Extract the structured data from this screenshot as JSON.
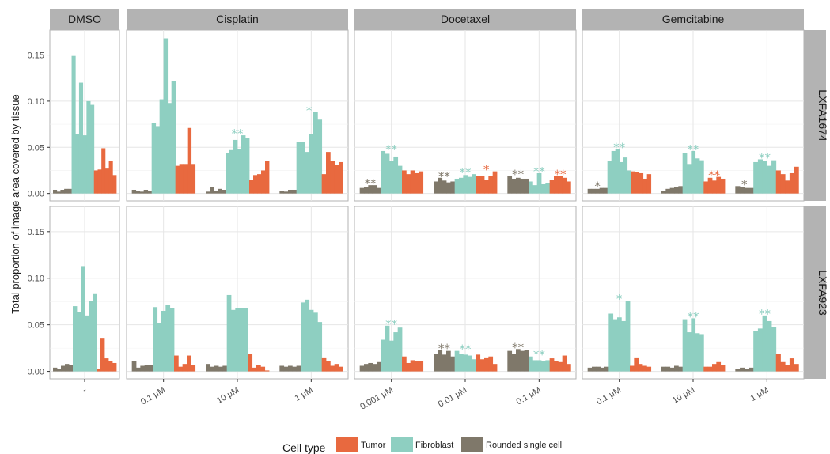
{
  "chart_data": {
    "type": "bar",
    "ylabel": "Total proportion of image area covered by tissue",
    "ylim": [
      -0.008,
      0.177
    ],
    "y_ticks": [
      "0.00",
      "0.05",
      "0.10",
      "0.15"
    ],
    "y_tick_values": [
      0,
      0.05,
      0.1,
      0.15
    ],
    "legend": {
      "title": "Cell type",
      "items": [
        {
          "label": "Tumor",
          "color": "#E8693F"
        },
        {
          "label": "Fibroblast",
          "color": "#8ECFC1"
        },
        {
          "label": "Rounded single cell",
          "color": "#7F786A"
        }
      ]
    },
    "colors": {
      "Tumor": "#E8693F",
      "Fibroblast": "#8ECFC1",
      "Rounded single cell": "#7F786A"
    },
    "columns": [
      {
        "label": "DMSO",
        "concentrations": [
          "-"
        ]
      },
      {
        "label": "Cisplatin",
        "concentrations": [
          "0.1 µM",
          "10 µM",
          "1 µM"
        ]
      },
      {
        "label": "Docetaxel",
        "concentrations": [
          "0.001 µM",
          "0.01 µM",
          "0.1 µM"
        ]
      },
      {
        "label": "Gemcitabine",
        "concentrations": [
          "0.1 µM",
          "10 µM",
          "1 µM"
        ]
      }
    ],
    "rows": [
      {
        "label": "LXFA1674",
        "panels": [
          {
            "groups": [
              {
                "rounded": [
                  0.004,
                  0.002,
                  0.004,
                  0.005,
                  0.005
                ],
                "fibroblast": [
                  0.149,
                  0.064,
                  0.12,
                  0.063,
                  0.1,
                  0.096
                ],
                "tumor": [
                  0.025,
                  0.026,
                  0.049,
                  0.027,
                  0.035,
                  0.02
                ],
                "stars": []
              }
            ]
          },
          {
            "groups": [
              {
                "rounded": [
                  0.004,
                  0.003,
                  0.002,
                  0.004,
                  0.003
                ],
                "fibroblast": [
                  0.076,
                  0.073,
                  0.102,
                  0.168,
                  0.098,
                  0.122
                ],
                "tumor": [
                  0.03,
                  0.032,
                  0.032,
                  0.071,
                  0.032
                ],
                "stars": []
              },
              {
                "rounded": [
                  0.002,
                  0.007,
                  0.003,
                  0.005,
                  0.004
                ],
                "fibroblast": [
                  0.044,
                  0.047,
                  0.058,
                  0.048,
                  0.063,
                  0.06
                ],
                "tumor": [
                  0.015,
                  0.02,
                  0.021,
                  0.025,
                  0.035
                ],
                "stars": [
                  {
                    "text": "**",
                    "cell": "Fibroblast"
                  }
                ]
              },
              {
                "rounded": [
                  0.003,
                  0.002,
                  0.004,
                  0.004
                ],
                "fibroblast": [
                  0.056,
                  0.056,
                  0.045,
                  0.064,
                  0.088,
                  0.08
                ],
                "tumor": [
                  0.021,
                  0.045,
                  0.035,
                  0.031,
                  0.034
                ],
                "stars": [
                  {
                    "text": "*",
                    "cell": "Fibroblast"
                  }
                ]
              }
            ]
          },
          {
            "groups": [
              {
                "rounded": [
                  0.006,
                  0.007,
                  0.009,
                  0.009,
                  0.006
                ],
                "fibroblast": [
                  0.046,
                  0.043,
                  0.035,
                  0.04,
                  0.03
                ],
                "tumor": [
                  0.025,
                  0.021,
                  0.025,
                  0.022,
                  0.024
                ],
                "stars": [
                  {
                    "text": "**",
                    "cell": "Rounded single cell"
                  },
                  {
                    "text": "**",
                    "cell": "Fibroblast"
                  }
                ]
              },
              {
                "rounded": [
                  0.013,
                  0.017,
                  0.014,
                  0.012,
                  0.013
                ],
                "fibroblast": [
                  0.016,
                  0.017,
                  0.02,
                  0.018,
                  0.021
                ],
                "tumor": [
                  0.019,
                  0.019,
                  0.015,
                  0.019,
                  0.024
                ],
                "stars": [
                  {
                    "text": "**",
                    "cell": "Rounded single cell"
                  },
                  {
                    "text": "**",
                    "cell": "Fibroblast"
                  },
                  {
                    "text": "*",
                    "cell": "Tumor"
                  }
                ]
              },
              {
                "rounded": [
                  0.019,
                  0.016,
                  0.017,
                  0.016,
                  0.016
                ],
                "fibroblast": [
                  0.013,
                  0.009,
                  0.022,
                  0.01,
                  0.011
                ],
                "tumor": [
                  0.015,
                  0.019,
                  0.019,
                  0.017,
                  0.013
                ],
                "stars": [
                  {
                    "text": "**",
                    "cell": "Rounded single cell"
                  },
                  {
                    "text": "**",
                    "cell": "Fibroblast"
                  },
                  {
                    "text": "**",
                    "cell": "Tumor"
                  }
                ]
              }
            ]
          },
          {
            "groups": [
              {
                "rounded": [
                  0.005,
                  0.005,
                  0.005,
                  0.006,
                  0.006
                ],
                "fibroblast": [
                  0.035,
                  0.046,
                  0.048,
                  0.034,
                  0.039,
                  0.025
                ],
                "tumor": [
                  0.024,
                  0.023,
                  0.022,
                  0.016,
                  0.021
                ],
                "stars": [
                  {
                    "text": "*",
                    "cell": "Rounded single cell"
                  },
                  {
                    "text": "**",
                    "cell": "Fibroblast"
                  }
                ]
              },
              {
                "rounded": [
                  0.003,
                  0.005,
                  0.006,
                  0.007,
                  0.008
                ],
                "fibroblast": [
                  0.044,
                  0.032,
                  0.046,
                  0.038,
                  0.036
                ],
                "tumor": [
                  0.013,
                  0.017,
                  0.014,
                  0.018,
                  0.016
                ],
                "stars": [
                  {
                    "text": "**",
                    "cell": "Fibroblast"
                  },
                  {
                    "text": "**",
                    "cell": "Tumor"
                  }
                ]
              },
              {
                "rounded": [
                  0.008,
                  0.007,
                  0.006,
                  0.006
                ],
                "fibroblast": [
                  0.034,
                  0.037,
                  0.035,
                  0.03,
                  0.036
                ],
                "tumor": [
                  0.025,
                  0.021,
                  0.014,
                  0.022,
                  0.029
                ],
                "stars": [
                  {
                    "text": "*",
                    "cell": "Rounded single cell"
                  },
                  {
                    "text": "**",
                    "cell": "Fibroblast"
                  }
                ]
              }
            ]
          }
        ]
      },
      {
        "label": "LXFA923",
        "panels": [
          {
            "groups": [
              {
                "rounded": [
                  0.004,
                  0.003,
                  0.006,
                  0.008,
                  0.007
                ],
                "fibroblast": [
                  0.07,
                  0.064,
                  0.113,
                  0.06,
                  0.076,
                  0.083
                ],
                "tumor": [
                  0.003,
                  0.036,
                  0.014,
                  0.011,
                  0.009
                ],
                "stars": []
              }
            ]
          },
          {
            "groups": [
              {
                "rounded": [
                  0.011,
                  0.004,
                  0.006,
                  0.007,
                  0.007
                ],
                "fibroblast": [
                  0.069,
                  0.052,
                  0.065,
                  0.071,
                  0.068
                ],
                "tumor": [
                  0.017,
                  0.005,
                  0.008,
                  0.017,
                  0.007
                ],
                "stars": []
              },
              {
                "rounded": [
                  0.008,
                  0.005,
                  0.006,
                  0.005,
                  0.006
                ],
                "fibroblast": [
                  0.082,
                  0.066,
                  0.068,
                  0.068,
                  0.068
                ],
                "tumor": [
                  0.019,
                  0.004,
                  0.007,
                  0.005,
                  0.001
                ],
                "stars": []
              },
              {
                "rounded": [
                  0.006,
                  0.005,
                  0.006,
                  0.005,
                  0.006
                ],
                "fibroblast": [
                  0.074,
                  0.077,
                  0.066,
                  0.063,
                  0.053
                ],
                "tumor": [
                  0.015,
                  0.011,
                  0.006,
                  0.008,
                  0.005
                ],
                "stars": []
              }
            ]
          },
          {
            "groups": [
              {
                "rounded": [
                  0.006,
                  0.008,
                  0.009,
                  0.008,
                  0.01
                ],
                "fibroblast": [
                  0.034,
                  0.049,
                  0.033,
                  0.042,
                  0.047
                ],
                "tumor": [
                  0.016,
                  0.009,
                  0.012,
                  0.011,
                  0.011
                ],
                "stars": [
                  {
                    "text": "**",
                    "cell": "Fibroblast"
                  }
                ]
              },
              {
                "rounded": [
                  0.019,
                  0.023,
                  0.018,
                  0.022,
                  0.016
                ],
                "fibroblast": [
                  0.022,
                  0.019,
                  0.018,
                  0.017,
                  0.013
                ],
                "tumor": [
                  0.018,
                  0.013,
                  0.015,
                  0.016,
                  0.008
                ],
                "stars": [
                  {
                    "text": "**",
                    "cell": "Rounded single cell"
                  },
                  {
                    "text": "**",
                    "cell": "Fibroblast"
                  }
                ]
              },
              {
                "rounded": [
                  0.022,
                  0.019,
                  0.024,
                  0.022,
                  0.023
                ],
                "fibroblast": [
                  0.016,
                  0.012,
                  0.012,
                  0.011,
                  0.012
                ],
                "tumor": [
                  0.014,
                  0.011,
                  0.01,
                  0.017,
                  0.008
                ],
                "stars": [
                  {
                    "text": "**",
                    "cell": "Rounded single cell"
                  },
                  {
                    "text": "**",
                    "cell": "Fibroblast"
                  }
                ]
              }
            ]
          },
          {
            "groups": [
              {
                "rounded": [
                  0.004,
                  0.005,
                  0.005,
                  0.004,
                  0.005
                ],
                "fibroblast": [
                  0.062,
                  0.056,
                  0.058,
                  0.054,
                  0.076
                ],
                "tumor": [
                  0.006,
                  0.015,
                  0.008,
                  0.006,
                  0.005
                ],
                "stars": [
                  {
                    "text": "*",
                    "cell": "Fibroblast"
                  }
                ]
              },
              {
                "rounded": [
                  0.005,
                  0.005,
                  0.004,
                  0.006,
                  0.005
                ],
                "fibroblast": [
                  0.056,
                  0.042,
                  0.057,
                  0.041,
                  0.04
                ],
                "tumor": [
                  0.005,
                  0.005,
                  0.008,
                  0.01,
                  0.007
                ],
                "stars": [
                  {
                    "text": "**",
                    "cell": "Fibroblast"
                  }
                ]
              },
              {
                "rounded": [
                  0.003,
                  0.004,
                  0.003,
                  0.004
                ],
                "fibroblast": [
                  0.043,
                  0.046,
                  0.06,
                  0.054,
                  0.048
                ],
                "tumor": [
                  0.019,
                  0.01,
                  0.007,
                  0.014,
                  0.008
                ],
                "stars": [
                  {
                    "text": "**",
                    "cell": "Fibroblast"
                  }
                ]
              }
            ]
          }
        ]
      }
    ]
  }
}
